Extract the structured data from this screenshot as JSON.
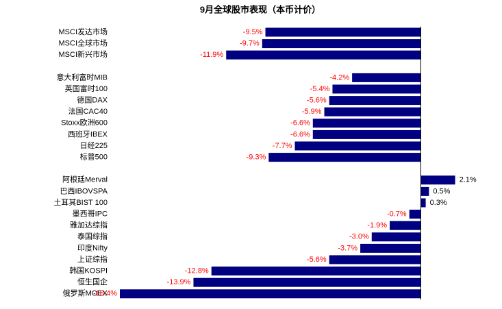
{
  "chart_data": {
    "type": "bar",
    "orientation": "horizontal",
    "title": "9月全球股市表现（本币计价）",
    "categories": [
      "MSCI发达市场",
      "MSCI全球市场",
      "MSCI新兴市场",
      null,
      "意大利富时MIB",
      "英国富时100",
      "德国DAX",
      "法国CAC40",
      "Stoxx欧洲600",
      "西班牙IBEX",
      "日经225",
      "标普500",
      null,
      "阿根廷Merval",
      "巴西IBOVSPA",
      "土耳其BIST 100",
      "墨西哥IPC",
      "雅加达综指",
      "泰国综指",
      "印度Nifty",
      "上证综指",
      "韩国KOSPI",
      "恒生国企",
      "俄罗斯MOEX"
    ],
    "values": [
      -9.5,
      -9.7,
      -11.9,
      null,
      -4.2,
      -5.4,
      -5.6,
      -5.9,
      -6.6,
      -6.6,
      -7.7,
      -9.3,
      null,
      2.1,
      0.5,
      0.3,
      -0.7,
      -1.9,
      -3.0,
      -3.7,
      -5.6,
      -12.8,
      -13.9,
      -18.4
    ],
    "value_labels": [
      "-9.5%",
      "-9.7%",
      "-11.9%",
      null,
      "-4.2%",
      "-5.4%",
      "-5.6%",
      "-5.9%",
      "-6.6%",
      "-6.6%",
      "-7.7%",
      "-9.3%",
      null,
      "2.1%",
      "0.5%",
      "0.3%",
      "-0.7%",
      "-1.9%",
      "-3.0%",
      "-3.7%",
      "-5.6%",
      "-12.8%",
      "-13.9%",
      "-18.4%"
    ],
    "color": "#000080",
    "negative_label_color": "#ff0000",
    "positive_label_color": "#000000",
    "xlim": [
      -18.5,
      4.5
    ]
  }
}
